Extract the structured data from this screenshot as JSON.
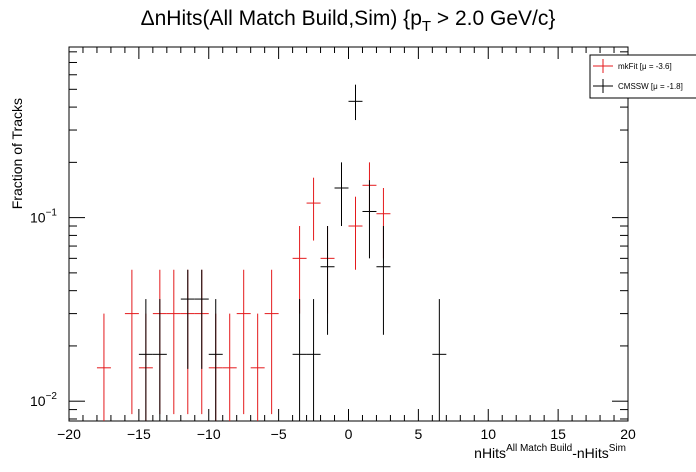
{
  "chart_data": {
    "type": "scatter",
    "title_main": "ΔnHits(All Match Build,Sim) {p",
    "title_sub": "T",
    "title_rest": " > 2.0 GeV/c}",
    "xlabel_a": "nHits",
    "xlabel_a_sup": "All Match Build",
    "xlabel_b": "-nHits",
    "xlabel_b_sup": "Sim",
    "ylabel": "Fraction of Tracks",
    "xlim": [
      -20,
      20
    ],
    "ylim": [
      0.0078,
      0.85
    ],
    "yscale": "log",
    "x_ticks": [
      {
        "v": -20,
        "label": "−20"
      },
      {
        "v": -15,
        "label": "−15"
      },
      {
        "v": -10,
        "label": "−10"
      },
      {
        "v": -5,
        "label": "−5"
      },
      {
        "v": 0,
        "label": "0"
      },
      {
        "v": 5,
        "label": "5"
      },
      {
        "v": 10,
        "label": "10"
      },
      {
        "v": 15,
        "label": "15"
      },
      {
        "v": 20,
        "label": "20"
      }
    ],
    "y_ticks": [
      {
        "v": 0.01,
        "base": "10",
        "exp": "−2"
      },
      {
        "v": 0.1,
        "base": "10",
        "exp": "−1"
      }
    ],
    "legend_position": "top-right",
    "series": [
      {
        "name": "mkFit",
        "legend_label": "mkFit  [μ = -3.6]",
        "color": "#e41a1c",
        "points": [
          {
            "x": -17.5,
            "y": 0.0152,
            "lo": 0.0075,
            "hi": 0.03
          },
          {
            "x": -15.5,
            "y": 0.03,
            "lo": 0.0085,
            "hi": 0.052
          },
          {
            "x": -14.5,
            "y": 0.0152,
            "lo": 0.0075,
            "hi": 0.03
          },
          {
            "x": -13.5,
            "y": 0.03,
            "lo": 0.0085,
            "hi": 0.052
          },
          {
            "x": -12.5,
            "y": 0.03,
            "lo": 0.0085,
            "hi": 0.052
          },
          {
            "x": -11.5,
            "y": 0.03,
            "lo": 0.0085,
            "hi": 0.052
          },
          {
            "x": -10.5,
            "y": 0.03,
            "lo": 0.0085,
            "hi": 0.052
          },
          {
            "x": -9.5,
            "y": 0.0152,
            "lo": 0.0075,
            "hi": 0.03
          },
          {
            "x": -8.5,
            "y": 0.0152,
            "lo": 0.0075,
            "hi": 0.03
          },
          {
            "x": -7.5,
            "y": 0.03,
            "lo": 0.0085,
            "hi": 0.052
          },
          {
            "x": -6.5,
            "y": 0.0152,
            "lo": 0.0075,
            "hi": 0.03
          },
          {
            "x": -5.5,
            "y": 0.03,
            "lo": 0.0085,
            "hi": 0.052
          },
          {
            "x": -3.5,
            "y": 0.06,
            "lo": 0.03,
            "hi": 0.09
          },
          {
            "x": -2.5,
            "y": 0.12,
            "lo": 0.075,
            "hi": 0.165
          },
          {
            "x": -1.5,
            "y": 0.06,
            "lo": 0.03,
            "hi": 0.09
          },
          {
            "x": 0.5,
            "y": 0.09,
            "lo": 0.052,
            "hi": 0.13
          },
          {
            "x": 1.5,
            "y": 0.15,
            "lo": 0.105,
            "hi": 0.2
          },
          {
            "x": 2.5,
            "y": 0.105,
            "lo": 0.06,
            "hi": 0.145
          }
        ]
      },
      {
        "name": "CMSSW",
        "legend_label": "CMSSW  [μ = -1.8]",
        "color": "#000000",
        "points": [
          {
            "x": -14.5,
            "y": 0.018,
            "lo": 0.0075,
            "hi": 0.036
          },
          {
            "x": -13.5,
            "y": 0.018,
            "lo": 0.0075,
            "hi": 0.036
          },
          {
            "x": -11.5,
            "y": 0.036,
            "lo": 0.015,
            "hi": 0.052
          },
          {
            "x": -10.5,
            "y": 0.036,
            "lo": 0.015,
            "hi": 0.052
          },
          {
            "x": -9.5,
            "y": 0.018,
            "lo": 0.0075,
            "hi": 0.036
          },
          {
            "x": -3.5,
            "y": 0.018,
            "lo": 0.0075,
            "hi": 0.036
          },
          {
            "x": -2.5,
            "y": 0.018,
            "lo": 0.0075,
            "hi": 0.036
          },
          {
            "x": -1.5,
            "y": 0.054,
            "lo": 0.023,
            "hi": 0.09
          },
          {
            "x": -0.5,
            "y": 0.145,
            "lo": 0.09,
            "hi": 0.2
          },
          {
            "x": 0.5,
            "y": 0.43,
            "lo": 0.34,
            "hi": 0.53
          },
          {
            "x": 1.5,
            "y": 0.108,
            "lo": 0.06,
            "hi": 0.16
          },
          {
            "x": 2.5,
            "y": 0.054,
            "lo": 0.023,
            "hi": 0.09
          },
          {
            "x": 6.5,
            "y": 0.018,
            "lo": 0.0075,
            "hi": 0.036
          }
        ]
      }
    ]
  }
}
